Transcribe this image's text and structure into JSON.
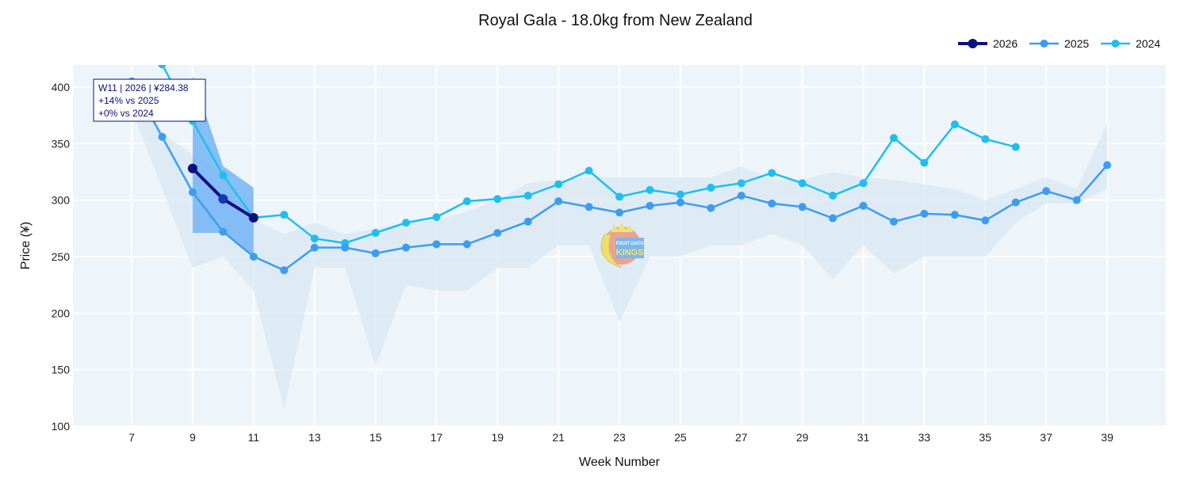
{
  "chart_data": {
    "type": "line",
    "title": "Royal Gala - 18.0kg from New Zealand",
    "xlabel": "Week Number",
    "ylabel": "Price (¥)",
    "xlim": [
      5.1,
      40.9
    ],
    "ylim": [
      100,
      420
    ],
    "x_ticks": [
      7,
      9,
      11,
      13,
      15,
      17,
      19,
      21,
      23,
      25,
      27,
      29,
      31,
      33,
      35,
      37,
      39
    ],
    "y_ticks": [
      100,
      150,
      200,
      250,
      300,
      350,
      400
    ],
    "grid": true,
    "legend_position": "top-right",
    "colors": {
      "2026": "#0a0f80",
      "2025": "#3d9cf2",
      "2024": "#1fbef0",
      "band_2026": "#7ab8f5",
      "band_hist": "#d9e9f4",
      "plot_bg": "#eef5fa"
    },
    "historic_range": {
      "weeks": [
        7,
        8,
        9,
        10,
        11,
        12,
        13,
        14,
        15,
        16,
        17,
        18,
        19,
        20,
        21,
        22,
        23,
        24,
        25,
        26,
        27,
        28,
        29,
        30,
        31,
        32,
        33,
        34,
        35,
        36,
        37,
        38,
        39
      ],
      "upper": [
        410,
        360,
        340,
        325,
        283,
        270,
        280,
        270,
        275,
        280,
        282,
        290,
        300,
        315,
        318,
        320,
        320,
        320,
        320,
        320,
        330,
        318,
        318,
        325,
        320,
        318,
        314,
        310,
        300,
        310,
        320,
        310,
        368
      ],
      "lower": [
        380,
        310,
        240,
        250,
        220,
        115,
        240,
        240,
        153,
        225,
        220,
        220,
        240,
        240,
        260,
        260,
        192,
        250,
        250,
        260,
        260,
        270,
        260,
        230,
        260,
        235,
        250,
        250,
        250,
        280,
        297,
        297,
        310
      ]
    },
    "band_2026": {
      "weeks": [
        9,
        10,
        11
      ],
      "upper": [
        410,
        330,
        311
      ],
      "lower": [
        271,
        271,
        251
      ]
    },
    "series": [
      {
        "name": "2026",
        "weeks": [
          9,
          10,
          11
        ],
        "values": [
          328,
          301,
          284.38
        ]
      },
      {
        "name": "2025",
        "weeks": [
          7,
          8,
          9,
          10,
          11,
          12,
          13,
          14,
          15,
          16,
          17,
          18,
          19,
          20,
          21,
          22,
          23,
          24,
          25,
          26,
          27,
          28,
          29,
          30,
          31,
          32,
          33,
          34,
          35,
          36,
          37,
          38,
          39
        ],
        "values": [
          405,
          356,
          307,
          272,
          250,
          238,
          258,
          258,
          253,
          258,
          261,
          261,
          271,
          281,
          299,
          294,
          289,
          295,
          298,
          293,
          304,
          297,
          294,
          284,
          295,
          281,
          288,
          287,
          282,
          298,
          308,
          300,
          331
        ]
      },
      {
        "name": "2024",
        "weeks": [
          7,
          8,
          9,
          10,
          11,
          12,
          13,
          14,
          15,
          16,
          17,
          18,
          19,
          20,
          21,
          22,
          23,
          24,
          25,
          26,
          27,
          28,
          29,
          30,
          31,
          32,
          33,
          34,
          35,
          36
        ],
        "values": [
          440,
          420,
          370,
          322,
          284.38,
          287,
          266,
          262,
          271,
          280,
          285,
          299,
          301,
          304,
          314,
          326,
          303,
          309,
          305,
          311,
          315,
          324,
          315,
          304,
          315,
          355,
          333,
          367,
          354,
          347
        ]
      }
    ],
    "tooltip": {
      "line1": "W11 | 2026 | ¥284.38",
      "line2": "+14% vs 2025",
      "line3": "+0% vs 2024"
    },
    "watermark": "FRUIT DATA KINGS .com"
  }
}
